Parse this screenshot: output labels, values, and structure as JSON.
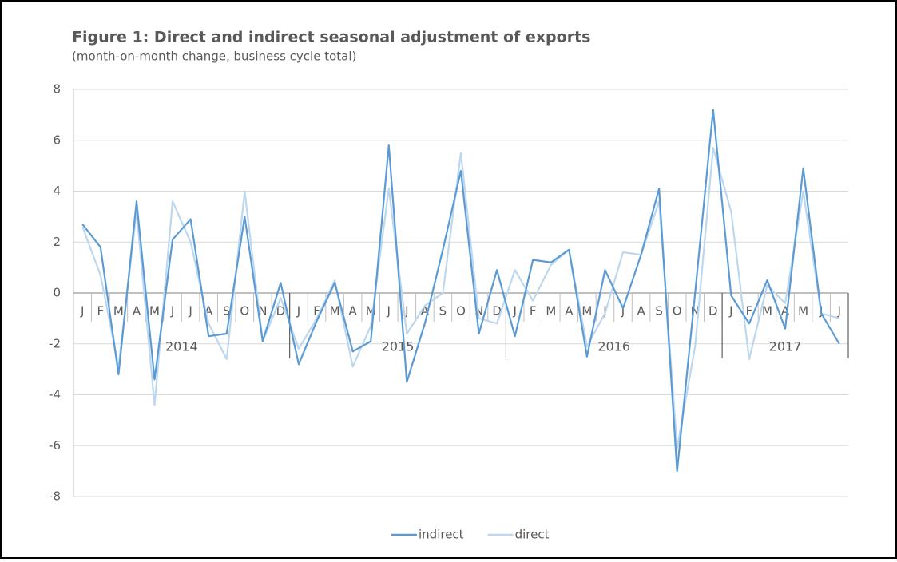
{
  "chart_data": {
    "type": "line",
    "title": "Figure 1: Direct and indirect seasonal adjustment of exports",
    "subtitle": "(month-on-month change, business cycle total)",
    "categories": [
      "J",
      "F",
      "M",
      "A",
      "M",
      "J",
      "J",
      "A",
      "S",
      "O",
      "N",
      "D",
      "J",
      "F",
      "M",
      "A",
      "M",
      "J",
      "J",
      "A",
      "S",
      "O",
      "N",
      "D",
      "J",
      "F",
      "M",
      "A",
      "M",
      "J",
      "J",
      "A",
      "S",
      "O",
      "N",
      "D",
      "J",
      "F",
      "M",
      "A",
      "M",
      "J",
      "J"
    ],
    "category_groups": [
      {
        "label": "2014",
        "count": 12
      },
      {
        "label": "2015",
        "count": 12
      },
      {
        "label": "2016",
        "count": 12
      },
      {
        "label": "2017",
        "count": 7
      }
    ],
    "series": [
      {
        "name": "indirect",
        "color": "#5b9bd5",
        "values": [
          2.7,
          1.8,
          -3.2,
          3.6,
          -3.4,
          2.1,
          2.9,
          -1.7,
          -1.6,
          3.0,
          -1.9,
          0.4,
          -2.8,
          -1.1,
          0.4,
          -2.3,
          -1.9,
          5.8,
          -3.5,
          -1.2,
          1.7,
          4.8,
          -1.6,
          0.9,
          -1.7,
          1.3,
          1.2,
          1.7,
          -2.5,
          0.9,
          -0.6,
          1.5,
          4.1,
          -7.0,
          0.0,
          7.2,
          -0.1,
          -1.2,
          0.5,
          -1.4,
          4.9,
          -0.8,
          -2.0
        ]
      },
      {
        "name": "direct",
        "color": "#bdd7ee",
        "values": [
          2.6,
          0.7,
          -2.9,
          3.2,
          -4.4,
          3.6,
          2.0,
          -1.2,
          -2.6,
          4.0,
          -1.9,
          -0.2,
          -2.2,
          -1.0,
          0.5,
          -2.9,
          -1.3,
          4.1,
          -1.6,
          -0.5,
          0.0,
          5.5,
          -1.0,
          -1.2,
          0.9,
          -0.3,
          1.1,
          1.7,
          -2.1,
          -0.8,
          1.6,
          1.5,
          3.6,
          -6.1,
          -2.1,
          5.7,
          3.2,
          -2.6,
          0.3,
          -0.4,
          4.0,
          -0.8,
          -1.0
        ]
      }
    ],
    "ylim": [
      -8,
      8
    ],
    "yticks": [
      -8,
      -6,
      -4,
      -2,
      0,
      2,
      4,
      6,
      8
    ],
    "grid": true,
    "legend": "bottom"
  }
}
